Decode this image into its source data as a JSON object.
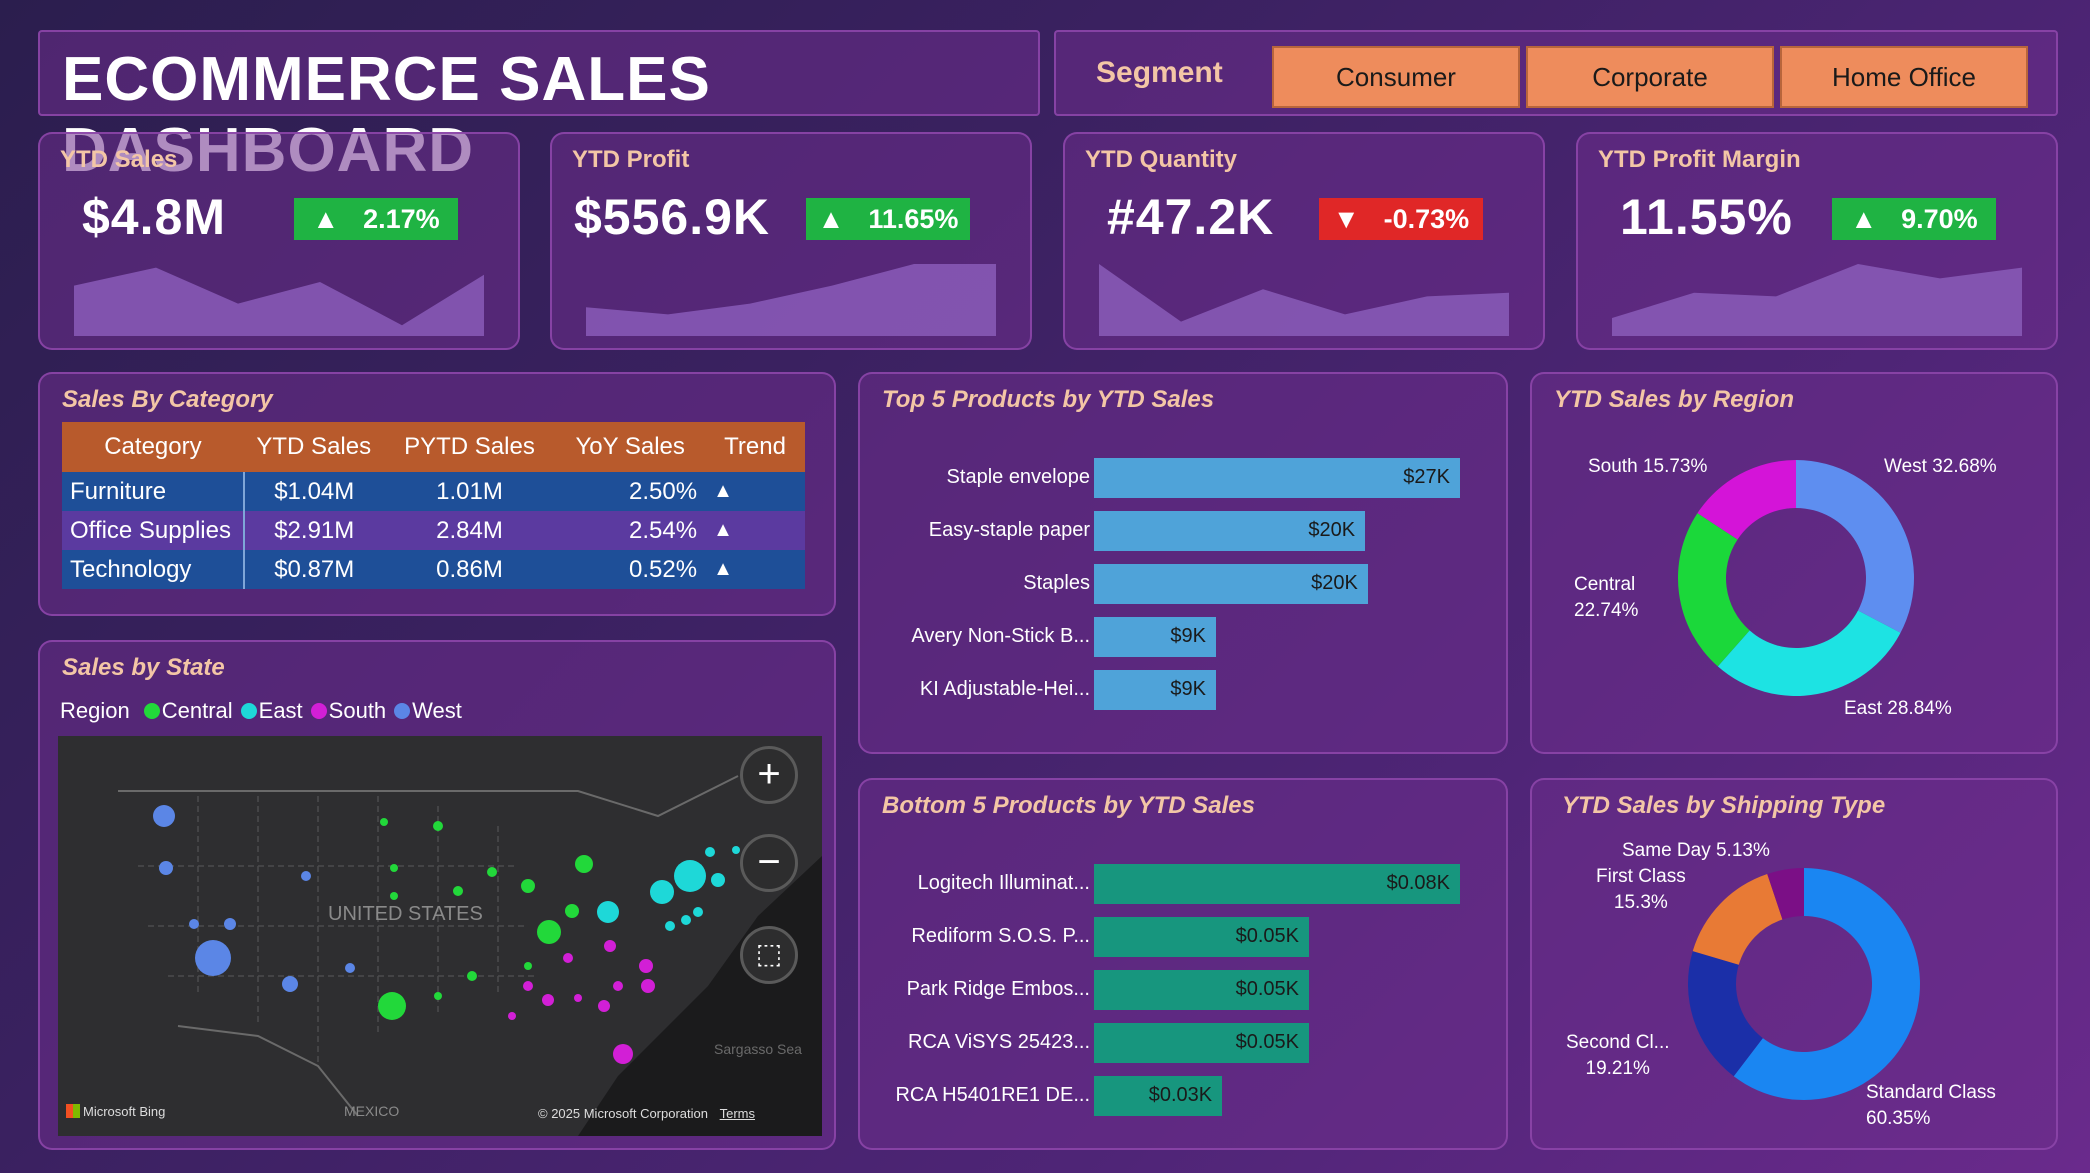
{
  "header": {
    "title": "ECOMMERCE SALES DASHBOARD",
    "segment_label": "Segment",
    "segments": [
      "Consumer",
      "Corporate",
      "Home Office"
    ]
  },
  "kpis": [
    {
      "title": "YTD Sales",
      "value": "$4.8M",
      "change": "2.17%",
      "direction": "up",
      "spark": [
        0.3,
        0.05,
        0.55,
        0.25,
        0.85,
        0.15
      ]
    },
    {
      "title": "YTD Profit",
      "value": "$556.9K",
      "change": "11.65%",
      "direction": "up",
      "spark": [
        0.6,
        0.7,
        0.55,
        0.3,
        0.0,
        0.0
      ]
    },
    {
      "title": "YTD Quantity",
      "value": "#47.2K",
      "change": "-0.73%",
      "direction": "down",
      "spark": [
        0.0,
        0.8,
        0.35,
        0.7,
        0.45,
        0.4
      ]
    },
    {
      "title": "YTD Profit Margin",
      "value": "11.55%",
      "change": "9.70%",
      "direction": "up",
      "spark": [
        0.75,
        0.4,
        0.45,
        0.0,
        0.2,
        0.05
      ]
    }
  ],
  "sales_by_category": {
    "title": "Sales By Category",
    "columns": [
      "Category",
      "YTD Sales",
      "PYTD Sales",
      "YoY Sales",
      "Trend"
    ],
    "rows": [
      {
        "category": "Furniture",
        "ytd": "$1.04M",
        "pytd": "1.01M",
        "yoy": "2.50%",
        "trend": "▲"
      },
      {
        "category": "Office Supplies",
        "ytd": "$2.91M",
        "pytd": "2.84M",
        "yoy": "2.54%",
        "trend": "▲"
      },
      {
        "category": "Technology",
        "ytd": "$0.87M",
        "pytd": "0.86M",
        "yoy": "0.52%",
        "trend": "▲"
      }
    ]
  },
  "sales_by_state": {
    "title": "Sales by State",
    "legend_label": "Region",
    "regions": [
      {
        "name": "Central",
        "color": "#22d83a"
      },
      {
        "name": "East",
        "color": "#1ed8d8"
      },
      {
        "name": "South",
        "color": "#d21fd6"
      },
      {
        "name": "West",
        "color": "#5b86e6"
      }
    ],
    "map_labels": {
      "country": "UNITED STATES",
      "mexico": "MEXICO",
      "sea": "Sargasso Sea",
      "bing": "Microsoft Bing",
      "copyright": "© 2025 Microsoft Corporation",
      "terms": "Terms"
    }
  },
  "top5": {
    "title": "Top 5 Products by YTD Sales",
    "color": "#4fa3d9",
    "items": [
      {
        "name": "Staple envelope",
        "value": 27,
        "label": "$27K"
      },
      {
        "name": "Easy-staple paper",
        "value": 20,
        "label": "$20K"
      },
      {
        "name": "Staples",
        "value": 20.2,
        "label": "$20K"
      },
      {
        "name": "Avery Non-Stick B...",
        "value": 9,
        "label": "$9K"
      },
      {
        "name": "KI Adjustable-Hei...",
        "value": 9,
        "label": "$9K"
      }
    ]
  },
  "bottom5": {
    "title": "Bottom 5 Products by YTD Sales",
    "color": "#17967e",
    "items": [
      {
        "name": "Logitech Illuminat...",
        "value": 0.08,
        "label": "$0.08K"
      },
      {
        "name": "Rediform S.O.S. P...",
        "value": 0.047,
        "label": "$0.05K"
      },
      {
        "name": "Park Ridge Embos...",
        "value": 0.047,
        "label": "$0.05K"
      },
      {
        "name": "RCA ViSYS 25423...",
        "value": 0.047,
        "label": "$0.05K"
      },
      {
        "name": "RCA H5401RE1 DE...",
        "value": 0.028,
        "label": "$0.03K"
      }
    ]
  },
  "region_donut": {
    "title": "YTD Sales by Region",
    "slices": [
      {
        "name": "West",
        "value": 32.68,
        "color": "#5e8ef0",
        "label": "West 32.68%"
      },
      {
        "name": "East",
        "value": 28.84,
        "color": "#1de3e3",
        "label": "East 28.84%"
      },
      {
        "name": "Central",
        "value": 22.74,
        "color": "#1bd83a",
        "label_line1": "Central",
        "label_line2": "22.74%"
      },
      {
        "name": "South",
        "value": 15.73,
        "color": "#d414d8",
        "label": "South 15.73%"
      }
    ]
  },
  "shipping_donut": {
    "title": "YTD Sales by Shipping Type",
    "slices": [
      {
        "name": "Standard Class",
        "value": 60.35,
        "color": "#1a86f2",
        "label_line1": "Standard Class",
        "label_line2": "60.35%"
      },
      {
        "name": "Second Class",
        "value": 19.21,
        "color": "#1b2fa8",
        "label_line1": "Second Cl...",
        "label_line2": "19.21%"
      },
      {
        "name": "First Class",
        "value": 15.3,
        "color": "#e87a35",
        "label_line1": "First Class",
        "label_line2": "15.3%"
      },
      {
        "name": "Same Day",
        "value": 5.13,
        "color": "#7b0f86",
        "label": "Same Day 5.13%"
      }
    ]
  }
}
